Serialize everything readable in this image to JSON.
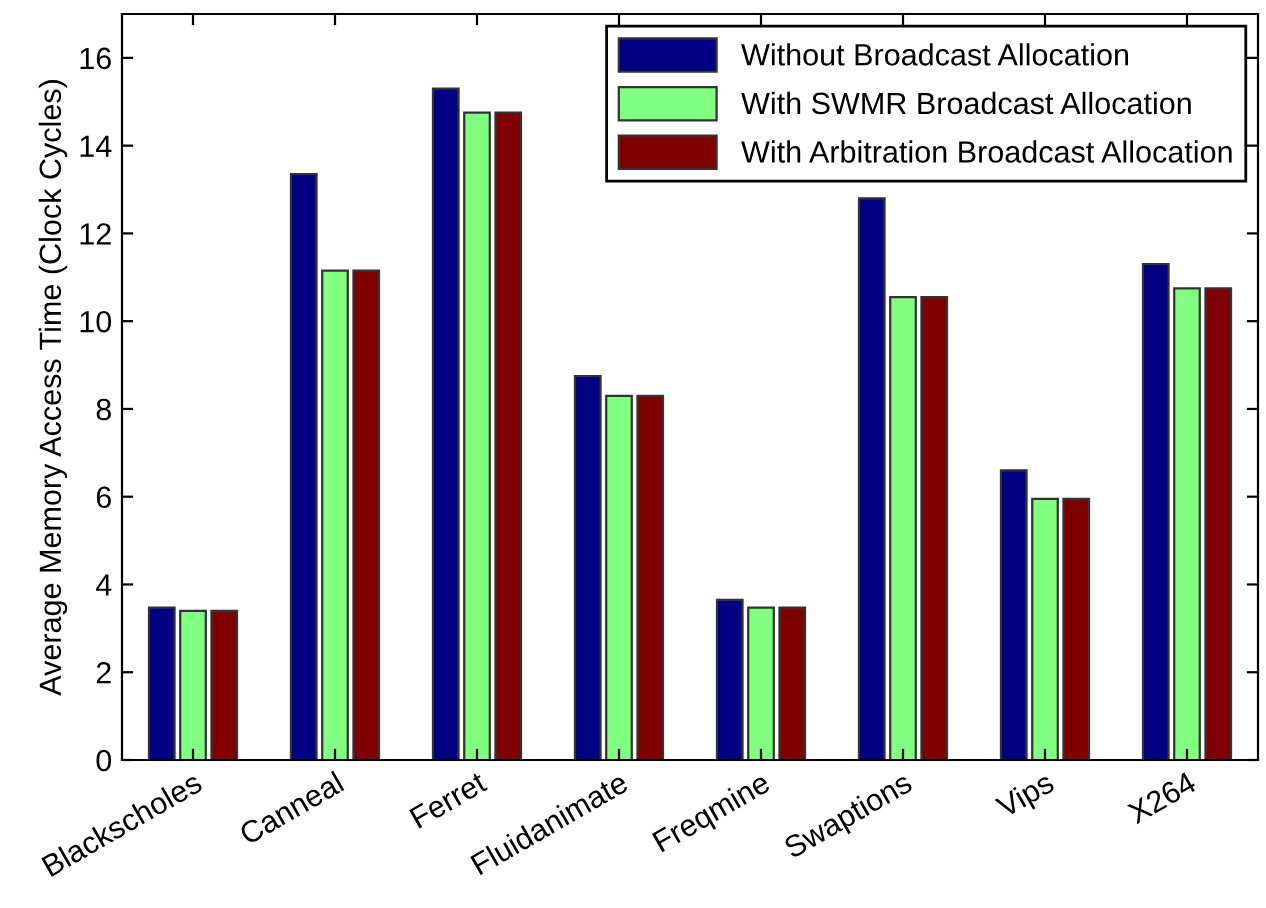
{
  "chart_data": {
    "type": "bar",
    "ylabel": "Average Memory Access Time (Clock Cycles)",
    "categories": [
      "Blackscholes",
      "Canneal",
      "Ferret",
      "Fluidanimate",
      "Freqmine",
      "Swaptions",
      "Vips",
      "X264"
    ],
    "series": [
      {
        "name": "Without Broadcast Allocation",
        "color": "#000080",
        "values": [
          3.47,
          13.35,
          15.3,
          8.75,
          3.65,
          12.8,
          6.6,
          11.3
        ]
      },
      {
        "name": "With SWMR Broadcast Allocation",
        "color": "#80ff80",
        "values": [
          3.4,
          11.15,
          14.75,
          8.3,
          3.47,
          10.55,
          5.95,
          10.75
        ]
      },
      {
        "name": "With Arbitration Broadcast Allocation",
        "color": "#800000",
        "values": [
          3.4,
          11.15,
          14.75,
          8.3,
          3.47,
          10.55,
          5.95,
          10.75
        ]
      }
    ],
    "ylim": [
      0,
      17
    ],
    "yticks": [
      0,
      2,
      4,
      6,
      8,
      10,
      12,
      14,
      16
    ],
    "grid": false,
    "legend": "top right"
  }
}
